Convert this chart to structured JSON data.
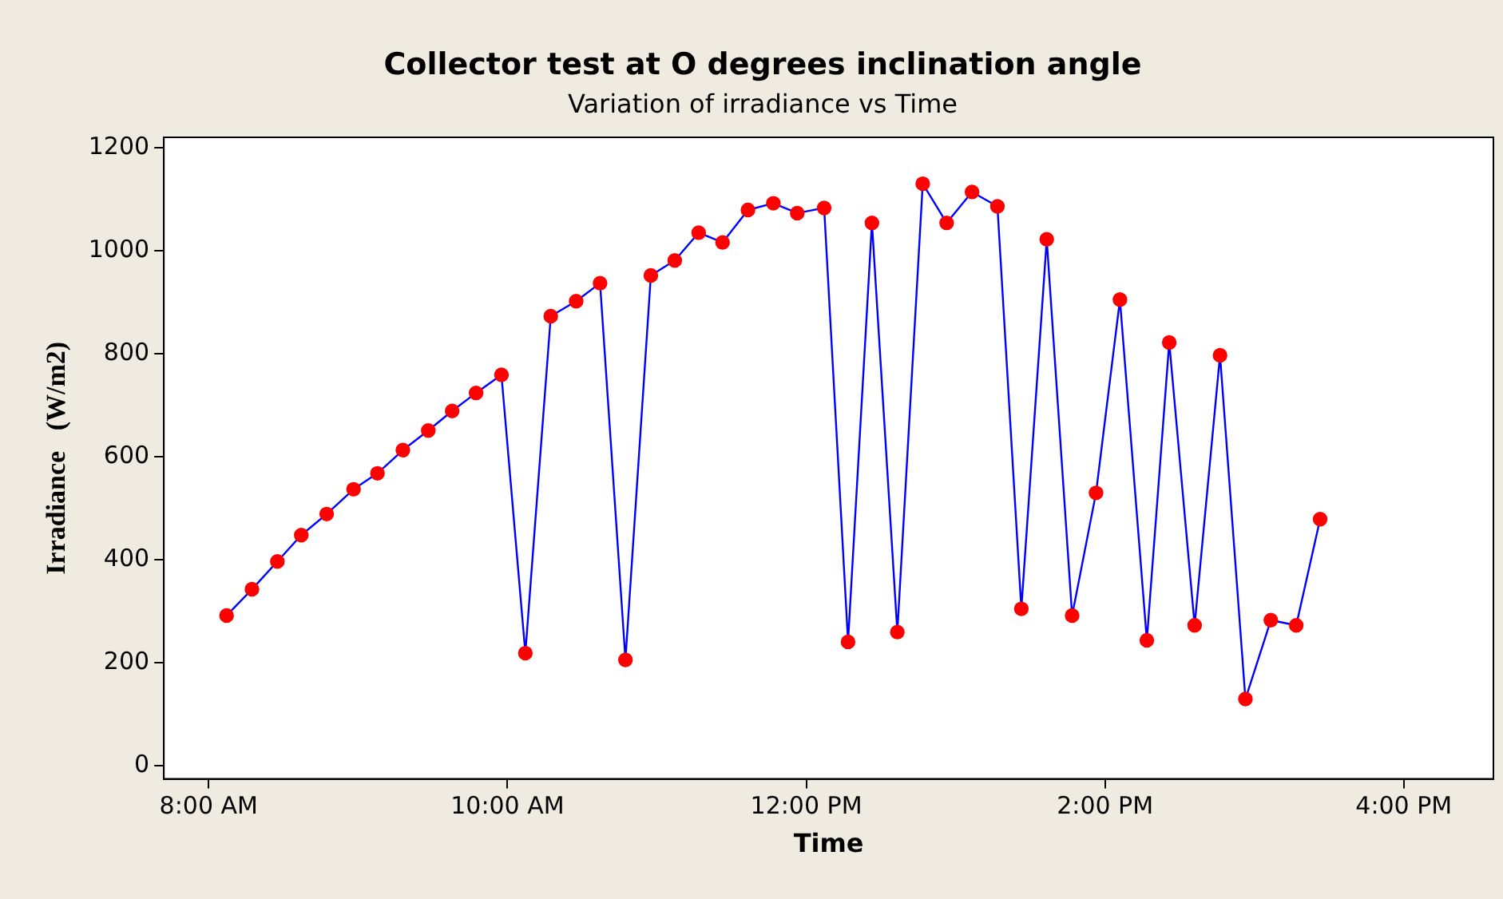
{
  "chart_data": {
    "type": "line",
    "title": "Collector test at O degrees inclination angle",
    "subtitle": "Variation of irradiance vs Time",
    "xlabel": "Time",
    "ylabel": "Irradiance   (W/m2)",
    "x": [
      8.12,
      8.29,
      8.46,
      8.62,
      8.79,
      8.97,
      9.13,
      9.3,
      9.47,
      9.63,
      9.79,
      9.96,
      10.12,
      10.29,
      10.46,
      10.62,
      10.79,
      10.96,
      11.12,
      11.28,
      11.44,
      11.61,
      11.78,
      11.94,
      12.12,
      12.28,
      12.44,
      12.61,
      12.78,
      12.94,
      13.11,
      13.28,
      13.44,
      13.61,
      13.78,
      13.94,
      14.1,
      14.28,
      14.43,
      14.6,
      14.77,
      14.94,
      15.11,
      15.28,
      15.44
    ],
    "series": [
      {
        "color": "#0000ff",
        "colors": [
          "#ff0000",
          "#ff0000",
          "#ff0000",
          "#ff0000",
          "#ff0000",
          "#ff0000",
          "#ff0000",
          "#ff0000",
          "#ff0000",
          "#ff0000",
          "#ff0000",
          "#ff0000",
          "#ff0000",
          "#ff0000",
          "#ff0000",
          "#ff0000",
          "#ff0000",
          "#ff0000",
          "#ff0000",
          "#ff0000",
          "#ff0000",
          "#ff0000",
          "#ff0000",
          "#ff0000",
          "#ff0000",
          "#ff0000",
          "#ff0000",
          "#ff0000",
          "#ff0000",
          "#ff0000",
          "#ff0000",
          "#ff0000",
          "#ff0000",
          "#ff0000",
          "#ff0000",
          "#ff0000",
          "#ff0000",
          "#ff0000",
          "#ff0000",
          "#ff0000",
          "#ff0000",
          "#ff0000",
          "#ff0000",
          "#ff0000",
          "#ff0000"
        ],
        "values": [
          292,
          343,
          397,
          448,
          489,
          537,
          568,
          613,
          651,
          689,
          724,
          759,
          219,
          873,
          902,
          937,
          206,
          952,
          981,
          1035,
          1016,
          1079,
          1092,
          1073,
          1083,
          241,
          1054,
          260,
          1130,
          1054,
          1114,
          1086,
          305,
          1022,
          292,
          530,
          905,
          244,
          822,
          273,
          797,
          130,
          283,
          273,
          479
        ]
      }
    ],
    "xlim": [
      7.7,
      16.6
    ],
    "xticks": [
      {
        "value": 8,
        "label": "8:00 AM"
      },
      {
        "value": 10,
        "label": "10:00 AM"
      },
      {
        "value": 12,
        "label": "12:00 PM"
      },
      {
        "value": 14,
        "label": "2:00 PM"
      },
      {
        "value": 16,
        "label": "4:00 PM"
      }
    ],
    "ylim": [
      -25,
      1220
    ],
    "yticks": [
      0,
      200,
      400,
      600,
      800,
      1000,
      1200
    ],
    "grid": false,
    "legend": false,
    "marker": "circle",
    "line_style": "solid"
  }
}
